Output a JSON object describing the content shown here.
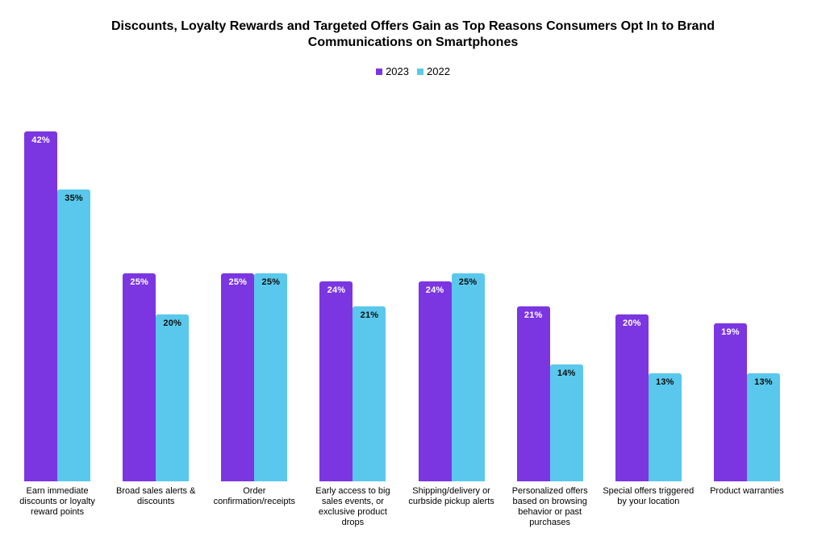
{
  "header": {
    "title": "Discounts, Loyalty Rewards and Targeted Offers Gain as Top Reasons Consumers Opt In to Brand Communications on Smartphones"
  },
  "legend": {
    "items": [
      {
        "label": "2023",
        "color": "#7B36E2"
      },
      {
        "label": "2022",
        "color": "#5AC8EC"
      }
    ]
  },
  "chart_data": {
    "type": "bar",
    "title": "Discounts, Loyalty Rewards and Targeted Offers Gain as Top Reasons Consumers Opt In to Brand Communications on Smartphones",
    "xlabel": "",
    "ylabel": "",
    "ylim": [
      0,
      45.2
    ],
    "grid": false,
    "legend_position": "top",
    "value_suffix": "%",
    "categories": [
      "Earn immediate\ndiscounts or loyalty\nreward points",
      "Broad sales alerts &\ndiscounts",
      "Order\nconfirmation/receipts",
      "Early access to big\nsales events, or\nexclusive product\ndrops",
      "Shipping/delivery or\ncurbside pickup alerts",
      "Personalized offers\nbased on browsing\nbehavior or past\npurchases",
      "Special offers triggered\nby your location",
      "Product warranties"
    ],
    "series": [
      {
        "name": "2023",
        "color": "#7B36E2",
        "label_color": "#FFFFFF",
        "values": [
          42,
          25,
          25,
          24,
          24,
          21,
          20,
          19
        ],
        "labels": [
          "42%",
          "25%",
          "25%",
          "24%",
          "24%",
          "21%",
          "20%",
          "19%"
        ]
      },
      {
        "name": "2022",
        "color": "#5AC8EC",
        "label_color": "#0D0D0D",
        "values": [
          35,
          20,
          25,
          21,
          25,
          14,
          13,
          13
        ],
        "labels": [
          "35%",
          "20%",
          "25%",
          "21%",
          "25%",
          "14%",
          "13%",
          "13%"
        ]
      }
    ]
  }
}
